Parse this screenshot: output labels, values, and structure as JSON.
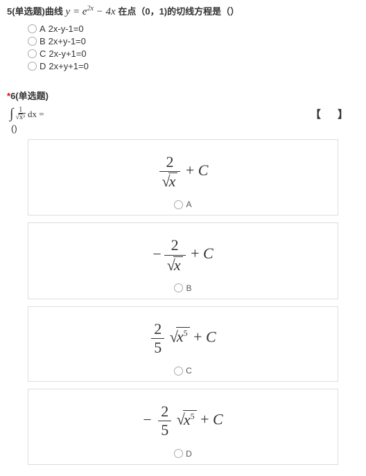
{
  "q5": {
    "prefix": "5(单选题)曲线 ",
    "math_html": "y = e<sup>2x</sup> &minus; 4x",
    "suffix": " 在点（0，1)的切线方程是（）",
    "options": [
      {
        "letter": "A",
        "text": "2x-y-1=0"
      },
      {
        "letter": "B",
        "text": "2x+y-1=0"
      },
      {
        "letter": "C",
        "text": "2x-y+1=0"
      },
      {
        "letter": "D",
        "text": "2x+y+1=0"
      }
    ]
  },
  "q6": {
    "required_mark": "*",
    "title": "6(单选题)",
    "stem_integral_dx": "dx =",
    "stem_frac_num": "1",
    "stem_sqrt_inner": "x³",
    "paren": "()",
    "brackets": "【 】",
    "options": [
      {
        "letter": "A",
        "sign": "",
        "frac_num": "2",
        "frac_den_type": "sqrt_x",
        "tail_type": "plus_C"
      },
      {
        "letter": "B",
        "sign": "−",
        "frac_num": "2",
        "frac_den_type": "sqrt_x",
        "tail_type": "plus_C"
      },
      {
        "letter": "C",
        "sign": "",
        "frac_num": "2",
        "frac_den_type": "5",
        "tail_type": "sqrt_x5_plus_C"
      },
      {
        "letter": "D",
        "sign": "−",
        "frac_num": "2",
        "frac_den_type": "5",
        "tail_type": "sqrt_x5_plus_C"
      }
    ],
    "colors": {
      "required": "#e60000",
      "border": "#dddddd",
      "text": "#333333"
    }
  }
}
